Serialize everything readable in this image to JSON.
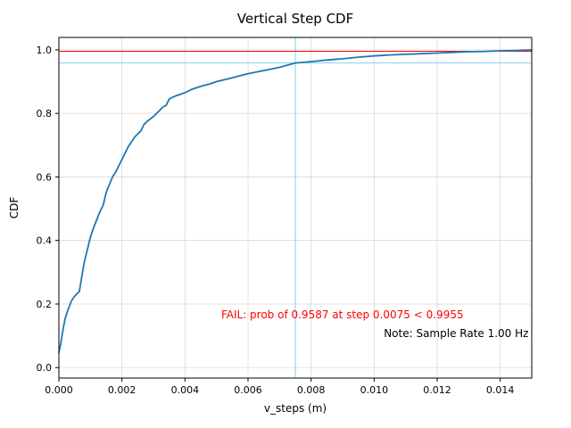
{
  "chart_data": {
    "type": "line",
    "title": "Vertical Step CDF",
    "xlabel": "v_steps (m)",
    "ylabel": "CDF",
    "xlim": [
      0.0,
      0.015
    ],
    "ylim": [
      -0.033,
      1.039
    ],
    "grid": true,
    "xticks": [
      {
        "v": 0.0,
        "label": "0.000"
      },
      {
        "v": 0.002,
        "label": "0.002"
      },
      {
        "v": 0.004,
        "label": "0.004"
      },
      {
        "v": 0.006,
        "label": "0.006"
      },
      {
        "v": 0.008,
        "label": "0.008"
      },
      {
        "v": 0.01,
        "label": "0.010"
      },
      {
        "v": 0.012,
        "label": "0.012"
      },
      {
        "v": 0.014,
        "label": "0.014"
      }
    ],
    "yticks": [
      {
        "v": 0.0,
        "label": "0.0"
      },
      {
        "v": 0.2,
        "label": "0.2"
      },
      {
        "v": 0.4,
        "label": "0.4"
      },
      {
        "v": 0.6,
        "label": "0.6"
      },
      {
        "v": 0.8,
        "label": "0.8"
      },
      {
        "v": 1.0,
        "label": "1.0"
      }
    ],
    "series": [
      {
        "name": "vertical-step-cdf",
        "color": "#1f77b4",
        "width": 1.8,
        "points": [
          [
            0.0,
            0.048
          ],
          [
            5e-05,
            0.07
          ],
          [
            0.0001,
            0.1
          ],
          [
            0.00015,
            0.13
          ],
          [
            0.0002,
            0.155
          ],
          [
            0.00025,
            0.17
          ],
          [
            0.0003,
            0.185
          ],
          [
            0.0004,
            0.21
          ],
          [
            0.0005,
            0.225
          ],
          [
            0.0006,
            0.235
          ],
          [
            0.00065,
            0.24
          ],
          [
            0.0007,
            0.27
          ],
          [
            0.00075,
            0.3
          ],
          [
            0.0008,
            0.33
          ],
          [
            0.0009,
            0.37
          ],
          [
            0.001,
            0.41
          ],
          [
            0.0011,
            0.44
          ],
          [
            0.0012,
            0.465
          ],
          [
            0.0013,
            0.49
          ],
          [
            0.0014,
            0.51
          ],
          [
            0.0015,
            0.55
          ],
          [
            0.00155,
            0.565
          ],
          [
            0.0016,
            0.575
          ],
          [
            0.0017,
            0.6
          ],
          [
            0.0018,
            0.615
          ],
          [
            0.0019,
            0.635
          ],
          [
            0.002,
            0.655
          ],
          [
            0.0021,
            0.675
          ],
          [
            0.0022,
            0.695
          ],
          [
            0.0023,
            0.71
          ],
          [
            0.0024,
            0.725
          ],
          [
            0.0025,
            0.735
          ],
          [
            0.0026,
            0.745
          ],
          [
            0.0027,
            0.765
          ],
          [
            0.0028,
            0.775
          ],
          [
            0.003,
            0.79
          ],
          [
            0.0032,
            0.81
          ],
          [
            0.0033,
            0.82
          ],
          [
            0.0034,
            0.825
          ],
          [
            0.0035,
            0.845
          ],
          [
            0.0037,
            0.855
          ],
          [
            0.004,
            0.865
          ],
          [
            0.0042,
            0.875
          ],
          [
            0.0045,
            0.885
          ],
          [
            0.0048,
            0.893
          ],
          [
            0.005,
            0.9
          ],
          [
            0.0055,
            0.912
          ],
          [
            0.006,
            0.925
          ],
          [
            0.0065,
            0.935
          ],
          [
            0.007,
            0.945
          ],
          [
            0.0075,
            0.9587
          ],
          [
            0.008,
            0.963
          ],
          [
            0.0085,
            0.968
          ],
          [
            0.009,
            0.972
          ],
          [
            0.0095,
            0.977
          ],
          [
            0.01,
            0.981
          ],
          [
            0.0105,
            0.984
          ],
          [
            0.011,
            0.986
          ],
          [
            0.0115,
            0.988
          ],
          [
            0.012,
            0.99
          ],
          [
            0.0125,
            0.992
          ],
          [
            0.013,
            0.994
          ],
          [
            0.0135,
            0.995
          ],
          [
            0.014,
            0.997
          ],
          [
            0.0145,
            0.998
          ],
          [
            0.015,
            1.0
          ]
        ]
      }
    ],
    "hlines": [
      {
        "name": "required-prob-line",
        "y": 0.9955,
        "color": "#ff0000",
        "width": 1
      },
      {
        "name": "achieved-prob-line",
        "y": 0.9587,
        "color": "#87ceeb",
        "width": 1
      }
    ],
    "vlines": [
      {
        "name": "step-threshold-line",
        "x": 0.0075,
        "color": "#87ceeb",
        "width": 1
      }
    ],
    "annotations": [
      {
        "name": "fail-annotation",
        "text": "FAIL: prob of 0.9587 at step 0.0075 < 0.9955",
        "x": 0.00515,
        "y": 0.155,
        "color": "#ff0000",
        "anchor": "start"
      },
      {
        "name": "sample-rate-note",
        "text": "Note: Sample Rate 1.00 Hz",
        "x": 0.0149,
        "y": 0.096,
        "color": "#000000",
        "anchor": "end"
      }
    ],
    "colors": {
      "grid": "#d9d9d9",
      "spine": "#000000",
      "tick_text": "#000000",
      "background": "#ffffff"
    }
  }
}
